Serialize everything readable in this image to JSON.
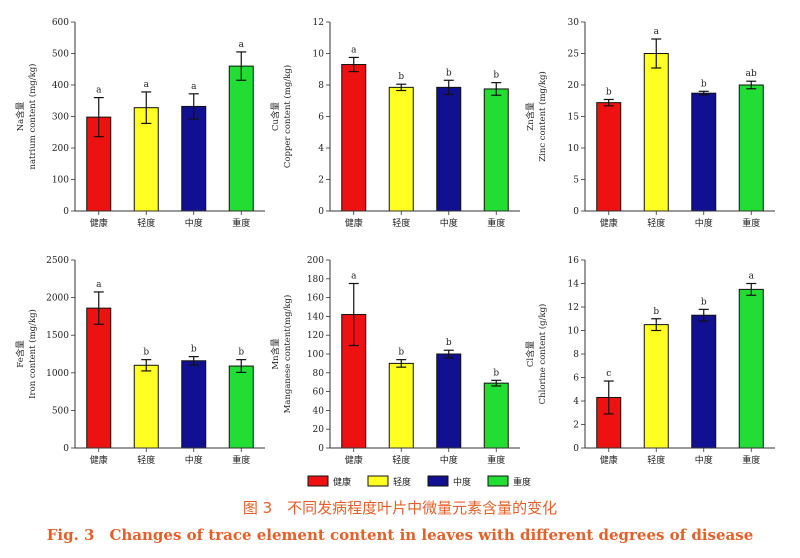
{
  "chart_data": [
    {
      "type": "bar",
      "categories": [
        "健康",
        "轻度",
        "中度",
        "重度"
      ],
      "values": [
        298,
        328,
        332,
        460
      ],
      "errors": [
        62,
        50,
        40,
        45
      ],
      "letters": [
        "a",
        "a",
        "a",
        "a"
      ],
      "ylabel_cn": "Na含量",
      "ylabel_en": "natrium content (mg/kg)",
      "ylim": [
        0,
        600
      ],
      "yticks": [
        0,
        100,
        200,
        300,
        400,
        500,
        600
      ]
    },
    {
      "type": "bar",
      "categories": [
        "健康",
        "轻度",
        "中度",
        "重度"
      ],
      "values": [
        9.3,
        7.85,
        7.85,
        7.75
      ],
      "errors": [
        0.45,
        0.2,
        0.45,
        0.4
      ],
      "letters": [
        "a",
        "b",
        "b",
        "b"
      ],
      "ylabel_cn": "Cu含量",
      "ylabel_en": "Copper content (mg/kg)",
      "ylim": [
        0,
        12
      ],
      "yticks": [
        0,
        2,
        4,
        6,
        8,
        10,
        12
      ]
    },
    {
      "type": "bar",
      "categories": [
        "健康",
        "轻度",
        "中度",
        "重度"
      ],
      "values": [
        17.2,
        25.0,
        18.7,
        20.0
      ],
      "errors": [
        0.5,
        2.3,
        0.3,
        0.6
      ],
      "letters": [
        "b",
        "a",
        "b",
        "ab"
      ],
      "ylabel_cn": "Zn含量",
      "ylabel_en": "Zinc content (mg/kg)",
      "ylim": [
        0,
        30
      ],
      "yticks": [
        0,
        5,
        10,
        15,
        20,
        25,
        30
      ]
    },
    {
      "type": "bar",
      "categories": [
        "健康",
        "轻度",
        "中度",
        "重度"
      ],
      "values": [
        1860,
        1100,
        1160,
        1090
      ],
      "errors": [
        215,
        75,
        55,
        85
      ],
      "letters": [
        "a",
        "b",
        "b",
        "b"
      ],
      "ylabel_cn": "Fe含量",
      "ylabel_en": "Iron content (mg/kg)",
      "ylim": [
        0,
        2500
      ],
      "yticks": [
        0,
        500,
        1000,
        1500,
        2000,
        2500
      ]
    },
    {
      "type": "bar",
      "categories": [
        "健康",
        "轻度",
        "中度",
        "重度"
      ],
      "values": [
        142,
        90,
        100,
        69
      ],
      "errors": [
        33,
        4,
        4,
        3
      ],
      "letters": [
        "a",
        "b",
        "b",
        "b"
      ],
      "ylabel_cn": "Mn含量",
      "ylabel_en": "Manganese content(mg/kg)",
      "ylim": [
        0,
        200
      ],
      "yticks": [
        0,
        20,
        40,
        60,
        80,
        100,
        120,
        140,
        160,
        180,
        200
      ]
    },
    {
      "type": "bar",
      "categories": [
        "健康",
        "轻度",
        "中度",
        "重度"
      ],
      "values": [
        4.3,
        10.5,
        11.3,
        13.5
      ],
      "errors": [
        1.4,
        0.5,
        0.5,
        0.5
      ],
      "letters": [
        "c",
        "b",
        "b",
        "a"
      ],
      "ylabel_cn": "Cl含量",
      "ylabel_en": "Chlorine content (g/kg)",
      "ylim": [
        0,
        16
      ],
      "yticks": [
        0,
        2,
        4,
        6,
        8,
        10,
        12,
        14,
        16
      ]
    }
  ],
  "colors": [
    "#ee1111",
    "#ffff22",
    "#101090",
    "#22dd33"
  ],
  "legend": [
    "健康",
    "轻度",
    "中度",
    "重度"
  ],
  "caption_cn": "图 3　不同发病程度叶片中微量元素含量的变化",
  "caption_en": "Fig. 3　Changes of trace element content in leaves with different degrees of disease"
}
